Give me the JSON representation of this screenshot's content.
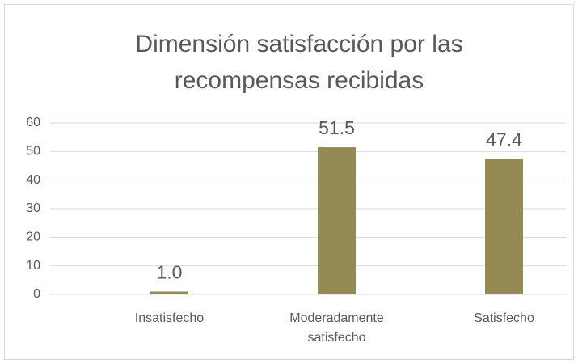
{
  "chart_data": {
    "type": "bar",
    "title": "Dimensión satisfacción por las recompensas recibidas",
    "categories": [
      "Insatisfecho",
      "Moderadamente satisfecho",
      "Satisfecho"
    ],
    "values": [
      1.0,
      51.5,
      47.4
    ],
    "value_labels": [
      "1.0",
      "51.5",
      "47.4"
    ],
    "color": "#948a54",
    "ylim": [
      0,
      60
    ],
    "yticks": [
      0,
      10,
      20,
      30,
      40,
      50,
      60
    ],
    "grid": true
  }
}
